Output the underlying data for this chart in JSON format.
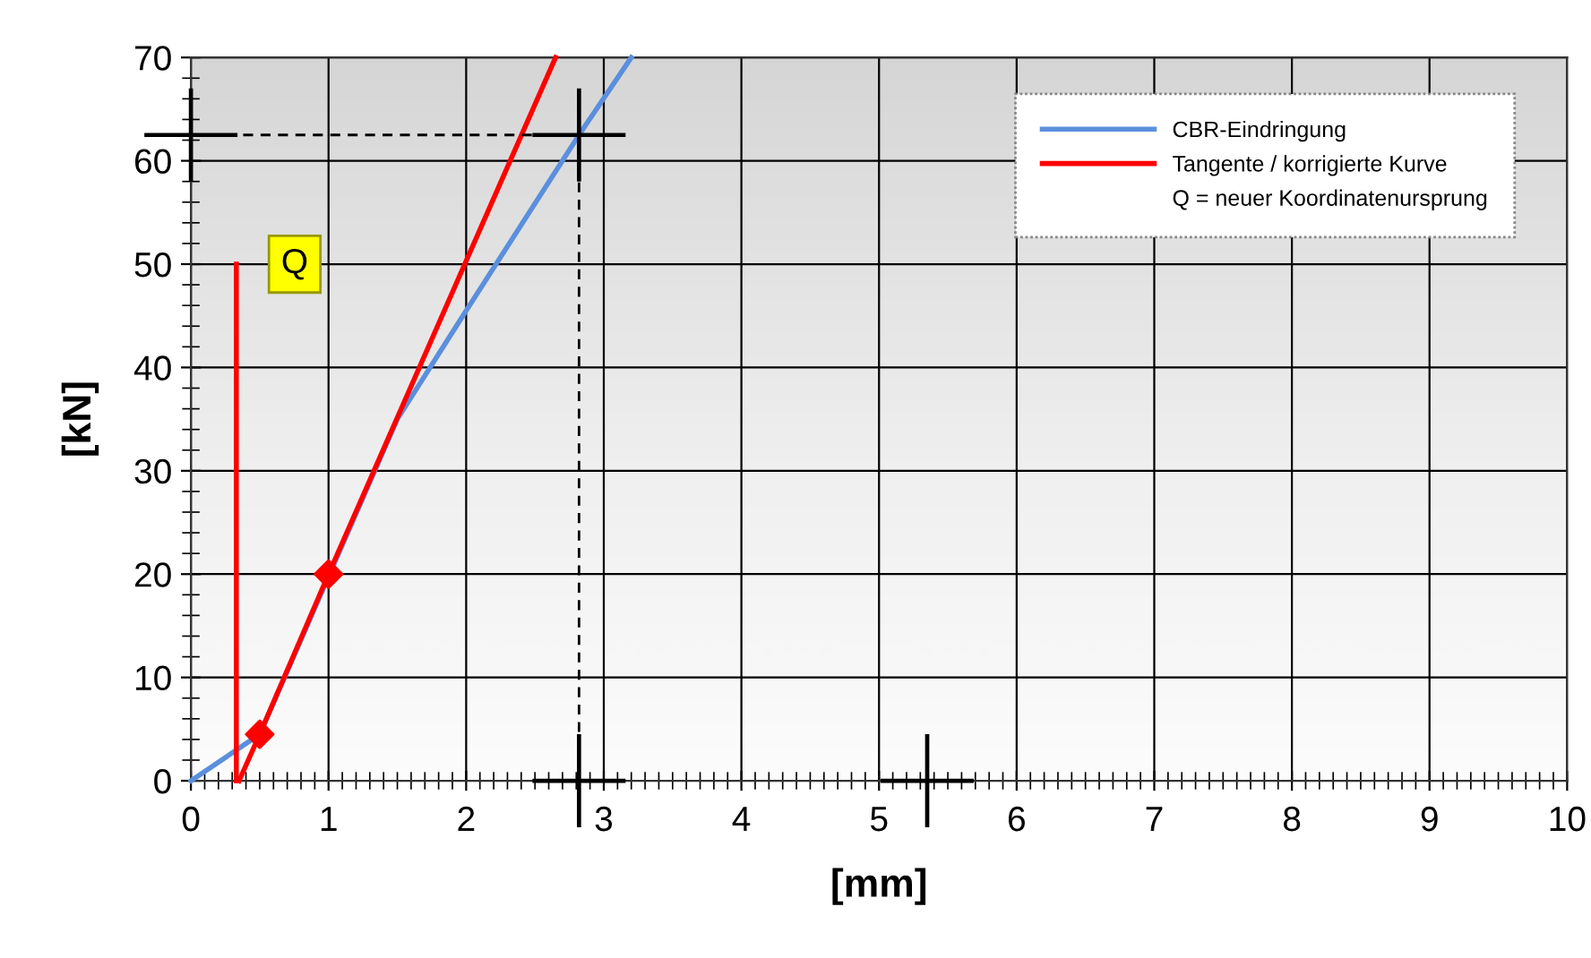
{
  "chart_data": {
    "type": "line",
    "xlabel": "[mm]",
    "ylabel": "[kN]",
    "xlim": [
      0,
      10
    ],
    "ylim": [
      0,
      70
    ],
    "xticks": [
      0,
      1,
      2,
      3,
      4,
      5,
      6,
      7,
      8,
      9,
      10
    ],
    "yticks": [
      0,
      10,
      20,
      30,
      40,
      50,
      60,
      70
    ],
    "grid": true,
    "legend": "top right",
    "marker": "none",
    "line_style": "solid",
    "series": [
      {
        "name": "CBR-Eindringung",
        "color": "#5b8fdc",
        "x": [
          0,
          0.5,
          1.5,
          2.0,
          2.82,
          3.2
        ],
        "values": [
          0,
          4.5,
          35,
          45.5,
          62.5,
          70
        ]
      },
      {
        "name": "Tangente / korrigierte Kurve",
        "color": "#ff0000",
        "x": [
          0.35,
          0.5,
          1.0,
          2.65
        ],
        "values": [
          0,
          4.5,
          20,
          70
        ]
      },
      {
        "color": "#ff0000",
        "x": [
          0.33,
          0.33
        ],
        "values": [
          0,
          50
        ]
      },
      {
        "type": "scatter",
        "marker": "diamond",
        "color": "#ff0000",
        "x": [
          0.5,
          1.0
        ],
        "values": [
          4.5,
          20
        ]
      },
      {
        "color": "#000000",
        "line_style": "dashed",
        "x": [
          0,
          2.82,
          2.82
        ],
        "values": [
          62.5,
          62.5,
          0
        ]
      },
      {
        "type": "scatter",
        "marker": "cross",
        "color": "#000000",
        "x": [
          0,
          2.82,
          2.82,
          5.35
        ],
        "values": [
          62.5,
          62.5,
          0,
          0
        ]
      }
    ],
    "annotations": [
      "Q = neuer Koordinatenursprung",
      {
        "text": "Q",
        "x": 0.33,
        "y": 50
      }
    ]
  }
}
